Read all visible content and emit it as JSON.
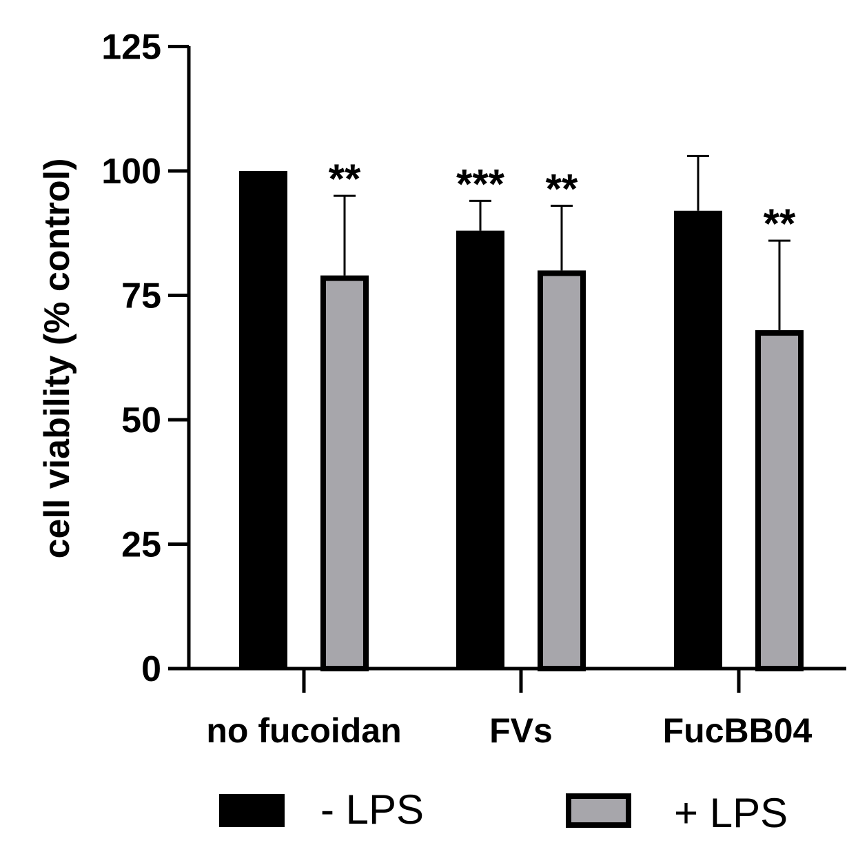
{
  "chart_data": {
    "type": "bar",
    "ylabel": "cell viability (% control)",
    "xlabel": "",
    "ylim": [
      0,
      125
    ],
    "yticks": [
      "0",
      "25",
      "50",
      "75",
      "100",
      "125"
    ],
    "categories": [
      "no fucoidan",
      "FVs",
      "FucBB04"
    ],
    "series": [
      {
        "name": "- LPS",
        "color": "#000000",
        "values": [
          100,
          88,
          92
        ],
        "errors": [
          0,
          6,
          11
        ],
        "significance": [
          "",
          "***",
          ""
        ]
      },
      {
        "name": "+ LPS",
        "color": "#a7a6ab",
        "values": [
          79,
          80,
          68
        ],
        "errors": [
          16,
          13,
          18
        ],
        "significance": [
          "**",
          "**",
          "**"
        ]
      }
    ],
    "legend_position": "bottom",
    "grid": false
  }
}
